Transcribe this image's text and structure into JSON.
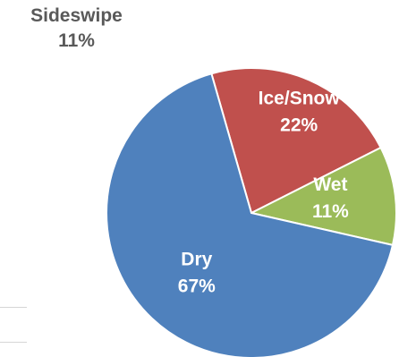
{
  "chart_data": {
    "type": "pie",
    "title": "",
    "slices": [
      {
        "label": "Dry",
        "value": 67,
        "pct_label": "67%",
        "color": "#4f81bd",
        "label_color": "#ffffff"
      },
      {
        "label": "Ice/Snow",
        "value": 22,
        "pct_label": "22%",
        "color": "#c0504d",
        "label_color": "#ffffff"
      },
      {
        "label": "Wet",
        "value": 11,
        "pct_label": "11%",
        "color": "#9bbb59",
        "label_color": "#ffffff"
      }
    ],
    "outside_label": {
      "label": "Sideswipe",
      "pct_label": "11%",
      "color": "#595959"
    },
    "slice_border_color": "#ffffff"
  }
}
